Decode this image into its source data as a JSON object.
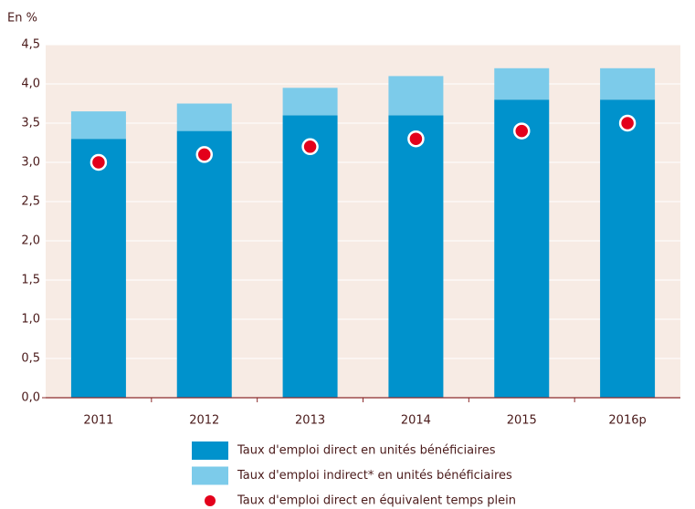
{
  "chart_data": {
    "type": "bar",
    "stacked": true,
    "y_axis_label": "En %",
    "categories": [
      "2011",
      "2012",
      "2013",
      "2014",
      "2015",
      "2016p"
    ],
    "series": [
      {
        "name": "Taux d'emploi direct en unités bénéficiaires",
        "color": "#0092cc",
        "type": "bar",
        "values": [
          3.3,
          3.4,
          3.6,
          3.6,
          3.8,
          3.8
        ]
      },
      {
        "name": "Taux d'emploi indirect* en unités bénéficiaires",
        "color": "#7ccbea",
        "type": "bar",
        "values": [
          0.35,
          0.35,
          0.35,
          0.5,
          0.4,
          0.4
        ]
      },
      {
        "name": "Taux d'emploi direct en équivalent temps plein",
        "color": "#e3001b",
        "type": "scatter",
        "values": [
          3.0,
          3.1,
          3.2,
          3.3,
          3.4,
          3.5
        ]
      }
    ],
    "ylim": [
      0,
      4.5
    ],
    "yticks": [
      {
        "value": 0,
        "label": "0,0"
      },
      {
        "value": 0.5,
        "label": "0,5"
      },
      {
        "value": 1,
        "label": "1,0"
      },
      {
        "value": 1.5,
        "label": "1,5"
      },
      {
        "value": 2,
        "label": "2,0"
      },
      {
        "value": 2.5,
        "label": "2,5"
      },
      {
        "value": 3,
        "label": "3,0"
      },
      {
        "value": 3.5,
        "label": "3,5"
      },
      {
        "value": 4,
        "label": "4,0"
      },
      {
        "value": 4.5,
        "label": "4,5"
      }
    ],
    "grid": true
  }
}
